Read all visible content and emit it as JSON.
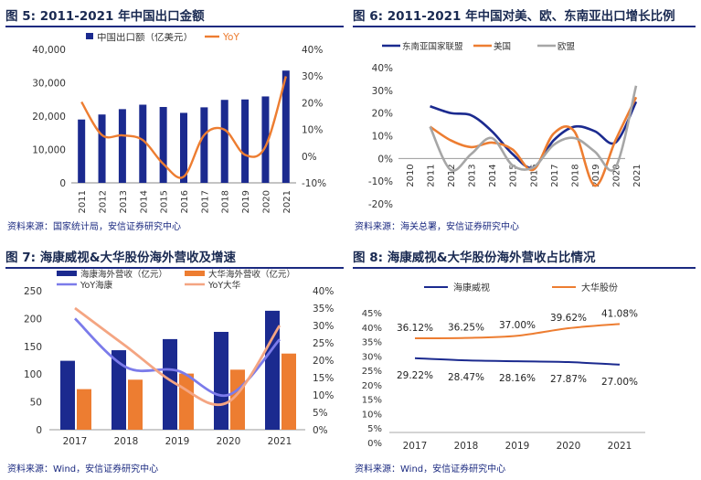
{
  "figures": [
    {
      "figure_label": "图 5:",
      "title": "2011-2021 年中国出口金额",
      "source": "资料来源：国家统计局，安信证券研究中心"
    },
    {
      "figure_label": "图 6:",
      "title": "2011-2021 年中国对美、欧、东南亚出口增长比例",
      "source": "资料来源：海关总署，安信证券研究中心"
    },
    {
      "figure_label": "图 7:",
      "title": "海康威视&大华股份海外营收及增速",
      "source": "资料来源：Wind，安信证券研究中心"
    },
    {
      "figure_label": "图 8:",
      "title": "海康威视&大华股份海外营收占比情况",
      "source": "资料来源：Wind，安信证券研究中心"
    }
  ],
  "colors": {
    "navy": "#1b2a8f",
    "orange": "#ed7d31",
    "gray": "#a6a6a6",
    "purple": "#7b7bea",
    "salmon": "#f4a582",
    "title_rule": "#1b2a80"
  },
  "chart_data": [
    {
      "type": "bar",
      "categories": [
        "2011",
        "2012",
        "2013",
        "2014",
        "2015",
        "2016",
        "2017",
        "2018",
        "2019",
        "2020",
        "2021"
      ],
      "series": [
        {
          "name": "中国出口额（亿美元）",
          "type": "bar",
          "axis": "left",
          "values": [
            18984,
            20487,
            22090,
            23423,
            22735,
            20976,
            22633,
            24867,
            24995,
            25900,
            33640
          ]
        },
        {
          "name": "YoY",
          "type": "line",
          "axis": "right",
          "values": [
            20.3,
            7.9,
            7.8,
            6.0,
            -2.9,
            -7.7,
            7.9,
            9.9,
            0.5,
            3.6,
            29.9
          ]
        }
      ],
      "ylim": [
        0,
        40000
      ],
      "yticks": [
        "0",
        "10,000",
        "20,000",
        "30,000",
        "40,000"
      ],
      "y2lim": [
        -10,
        40
      ],
      "y2ticks": [
        "-10%",
        "0%",
        "10%",
        "20%",
        "30%",
        "40%"
      ],
      "legend": "top"
    },
    {
      "type": "line",
      "categories": [
        "2010",
        "2011",
        "2012",
        "2013",
        "2014",
        "2015",
        "2016",
        "2017",
        "2018",
        "2019",
        "2020",
        "2021"
      ],
      "series": [
        {
          "name": "东南亚国家联盟",
          "values": [
            null,
            23,
            20,
            19,
            12,
            2,
            -4,
            8,
            14,
            12,
            7,
            25
          ]
        },
        {
          "name": "美国",
          "values": [
            null,
            14,
            8,
            5,
            7,
            4,
            -5,
            11,
            12,
            -12,
            8,
            27
          ]
        },
        {
          "name": "欧盟",
          "values": [
            null,
            14,
            -5,
            2,
            9,
            -3,
            -4,
            6,
            9,
            3,
            -4,
            32
          ]
        }
      ],
      "ylim": [
        -20,
        40
      ],
      "yticks": [
        "-20%",
        "-10%",
        "0%",
        "10%",
        "20%",
        "30%",
        "40%"
      ],
      "legend": "top"
    },
    {
      "type": "bar",
      "categories": [
        "2017",
        "2018",
        "2019",
        "2020",
        "2021"
      ],
      "series": [
        {
          "name": "海康海外营收（亿元）",
          "type": "bar",
          "axis": "left",
          "values": [
            124,
            143,
            163,
            176,
            214
          ]
        },
        {
          "name": "大华海外营收（亿元）",
          "type": "bar",
          "axis": "left",
          "values": [
            73,
            90,
            101,
            108,
            137
          ]
        },
        {
          "name": "YoY海康",
          "type": "line",
          "axis": "right",
          "values": [
            32,
            18,
            17,
            10,
            26
          ]
        },
        {
          "name": "YoY大华",
          "type": "line",
          "axis": "right",
          "values": [
            35,
            24,
            13,
            8,
            30
          ]
        }
      ],
      "ylim": [
        0,
        250
      ],
      "yticks": [
        "0",
        "50",
        "100",
        "150",
        "200",
        "250"
      ],
      "y2lim": [
        0,
        40
      ],
      "y2ticks": [
        "0%",
        "5%",
        "10%",
        "15%",
        "20%",
        "25%",
        "30%",
        "35%",
        "40%"
      ],
      "legend": "top"
    },
    {
      "type": "line",
      "categories": [
        "2017",
        "2018",
        "2019",
        "2020",
        "2021"
      ],
      "series": [
        {
          "name": "海康威视",
          "values": [
            29.22,
            28.47,
            28.16,
            27.87,
            27.0
          ],
          "labels": [
            "29.22%",
            "28.47%",
            "28.16%",
            "27.87%",
            "27.00%"
          ]
        },
        {
          "name": "大华股份",
          "values": [
            36.12,
            36.25,
            37.0,
            39.62,
            41.08
          ],
          "labels": [
            "36.12%",
            "36.25%",
            "37.00%",
            "39.62%",
            "41.08%"
          ]
        }
      ],
      "ylim": [
        0,
        45
      ],
      "yticks": [
        "0%",
        "5%",
        "10%",
        "15%",
        "20%",
        "25%",
        "30%",
        "35%",
        "40%",
        "45%"
      ],
      "legend": "top"
    }
  ]
}
